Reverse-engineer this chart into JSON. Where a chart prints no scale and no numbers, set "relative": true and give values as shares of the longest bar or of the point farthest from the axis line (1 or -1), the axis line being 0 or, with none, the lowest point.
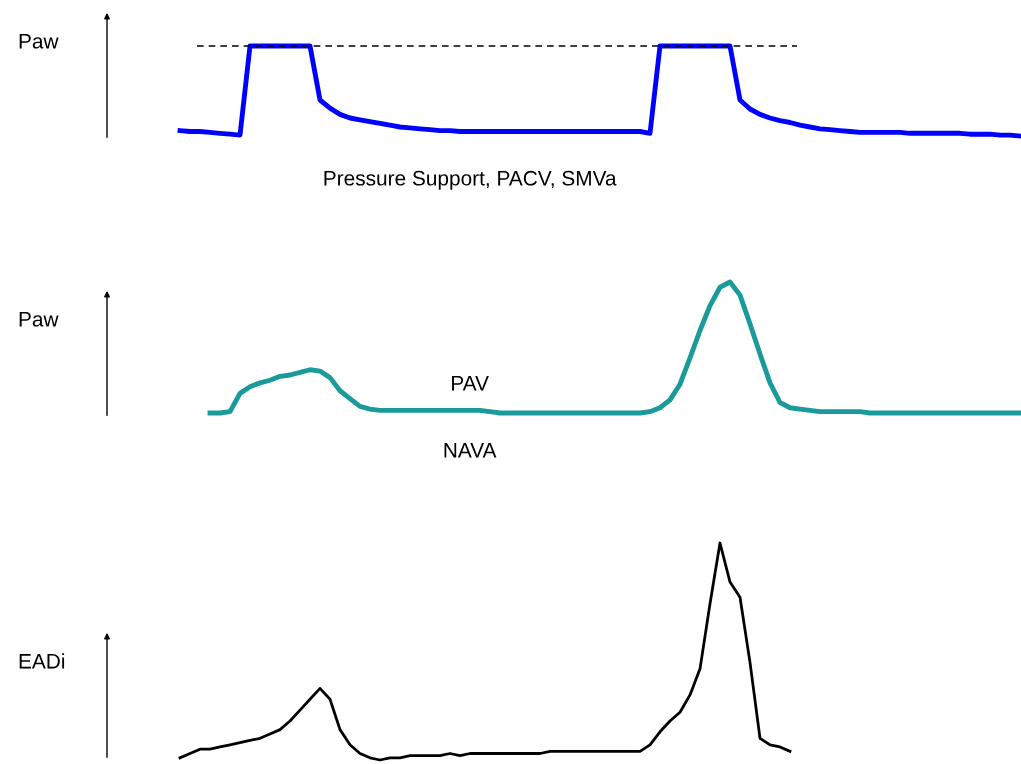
{
  "chart_data": [
    {
      "type": "line",
      "relative": true,
      "ylabel": "Paw",
      "categories": [
        null,
        null,
        null,
        null,
        null,
        null,
        null,
        null,
        null,
        null,
        null,
        null,
        null,
        null,
        null,
        null,
        null,
        null,
        null,
        null,
        null,
        null,
        null,
        null,
        null,
        null,
        null,
        null,
        null,
        null,
        null,
        null,
        null,
        null,
        null,
        null,
        null,
        null,
        null,
        null,
        null,
        null,
        null,
        null,
        null,
        null,
        null,
        null,
        null,
        null,
        null,
        null,
        null,
        null,
        null,
        null,
        null,
        null,
        null,
        null,
        null,
        null,
        null,
        null,
        null,
        null,
        null,
        null,
        null,
        null,
        null,
        null,
        null,
        null,
        null,
        null,
        null,
        null,
        null,
        null,
        null,
        null,
        null,
        null,
        null
      ],
      "series": [
        {
          "color": "#0000ff",
          "values": [
            0.06,
            0.05,
            0.05,
            0.04,
            0.03,
            0.02,
            0.01,
            1,
            1,
            1,
            1,
            1,
            1,
            1,
            0.4,
            0.31,
            0.24,
            0.2,
            0.18,
            0.16,
            0.14,
            0.12,
            0.1,
            0.09,
            0.08,
            0.07,
            0.06,
            0.06,
            0.05,
            0.05,
            0.05,
            0.05,
            0.05,
            0.05,
            0.05,
            0.05,
            0.05,
            0.05,
            0.05,
            0.05,
            0.05,
            0.05,
            0.05,
            0.05,
            0.05,
            0.05,
            0.05,
            0.03,
            1,
            1,
            1,
            1,
            1,
            1,
            1,
            1,
            0.4,
            0.3,
            0.24,
            0.2,
            0.17,
            0.15,
            0.12,
            0.1,
            0.08,
            0.07,
            0.06,
            0.05,
            0.04,
            0.04,
            0.04,
            0.04,
            0.04,
            0.03,
            0.03,
            0.03,
            0.03,
            0.03,
            0.03,
            0.02,
            0.02,
            0.02,
            0.01,
            0.01,
            0
          ]
        }
      ],
      "ref_lines": [
        {
          "axis": "y",
          "value": 1,
          "color": "#000000",
          "line_style": "dashed"
        }
      ],
      "annotations": [
        "Pressure Support, PACV, SMVa"
      ]
    },
    {
      "type": "line",
      "relative": true,
      "ylabel": "Paw",
      "categories": [
        null,
        null,
        null,
        null,
        null,
        null,
        null,
        null,
        null,
        null,
        null,
        null,
        null,
        null,
        null,
        null,
        null,
        null,
        null,
        null,
        null,
        null,
        null,
        null,
        null,
        null,
        null,
        null,
        null,
        null,
        null,
        null,
        null,
        null,
        null,
        null,
        null,
        null,
        null,
        null,
        null,
        null,
        null,
        null,
        null,
        null,
        null,
        null,
        null,
        null,
        null,
        null,
        null,
        null,
        null,
        null,
        null,
        null,
        null,
        null,
        null,
        null,
        null,
        null,
        null,
        null,
        null,
        null,
        null,
        null,
        null,
        null,
        null,
        null,
        null,
        null,
        null,
        null,
        null,
        null,
        null,
        null,
        null,
        null,
        null
      ],
      "series": [
        {
          "color": "#1a9a9a",
          "values": [
            null,
            null,
            null,
            0,
            0,
            0.01,
            0.15,
            0.2,
            0.23,
            0.25,
            0.28,
            0.29,
            0.31,
            0.33,
            0.32,
            0.27,
            0.17,
            0.11,
            0.05,
            0.03,
            0.02,
            0.02,
            0.02,
            0.02,
            0.02,
            0.02,
            0.02,
            0.02,
            0.02,
            0.02,
            0.02,
            0.01,
            0,
            0,
            0,
            0,
            0,
            0,
            0,
            0,
            0,
            0,
            0,
            0,
            0,
            0,
            0,
            0.01,
            0.04,
            0.1,
            0.22,
            0.42,
            0.63,
            0.82,
            0.96,
            1,
            0.9,
            0.68,
            0.45,
            0.23,
            0.08,
            0.04,
            0.03,
            0.02,
            0.01,
            0.01,
            0.01,
            0.01,
            0.01,
            0,
            0,
            0,
            0,
            0,
            0,
            0,
            0,
            0,
            0,
            0,
            0,
            0,
            0,
            0,
            0
          ]
        }
      ],
      "annotations": [
        "PAV",
        "NAVA"
      ]
    },
    {
      "type": "line",
      "relative": true,
      "ylabel": "EADi",
      "categories": [
        null,
        null,
        null,
        null,
        null,
        null,
        null,
        null,
        null,
        null,
        null,
        null,
        null,
        null,
        null,
        null,
        null,
        null,
        null,
        null,
        null,
        null,
        null,
        null,
        null,
        null,
        null,
        null,
        null,
        null,
        null,
        null,
        null,
        null,
        null,
        null,
        null,
        null,
        null,
        null,
        null,
        null,
        null,
        null,
        null,
        null,
        null,
        null,
        null,
        null,
        null,
        null,
        null,
        null,
        null,
        null,
        null,
        null,
        null,
        null,
        null,
        null,
        null,
        null,
        null,
        null,
        null,
        null,
        null,
        null,
        null,
        null,
        null,
        null,
        null,
        null,
        null,
        null,
        null,
        null,
        null,
        null,
        null,
        null,
        null
      ],
      "series": [
        {
          "color": "#000000",
          "values": [
            0.01,
            0.03,
            0.05,
            0.05,
            0.06,
            0.07,
            0.08,
            0.09,
            0.1,
            0.12,
            0.14,
            0.18,
            0.23,
            0.28,
            0.33,
            0.28,
            0.14,
            0.07,
            0.03,
            0.01,
            0,
            0.01,
            0.01,
            0.02,
            0.02,
            0.02,
            0.02,
            0.03,
            0.02,
            0.03,
            0.03,
            0.03,
            0.03,
            0.03,
            0.03,
            0.03,
            0.03,
            0.04,
            0.04,
            0.04,
            0.04,
            0.04,
            0.04,
            0.04,
            0.04,
            0.04,
            0.04,
            0.07,
            0.13,
            0.18,
            0.22,
            0.3,
            0.42,
            0.72,
            1,
            0.82,
            0.75,
            0.45,
            0.1,
            0.07,
            0.06,
            0.04,
            null,
            null,
            null,
            null,
            null,
            null,
            null,
            null,
            null,
            null,
            null,
            null,
            null,
            null,
            null,
            null,
            null,
            null,
            null,
            null,
            null,
            null,
            null
          ]
        }
      ]
    }
  ]
}
